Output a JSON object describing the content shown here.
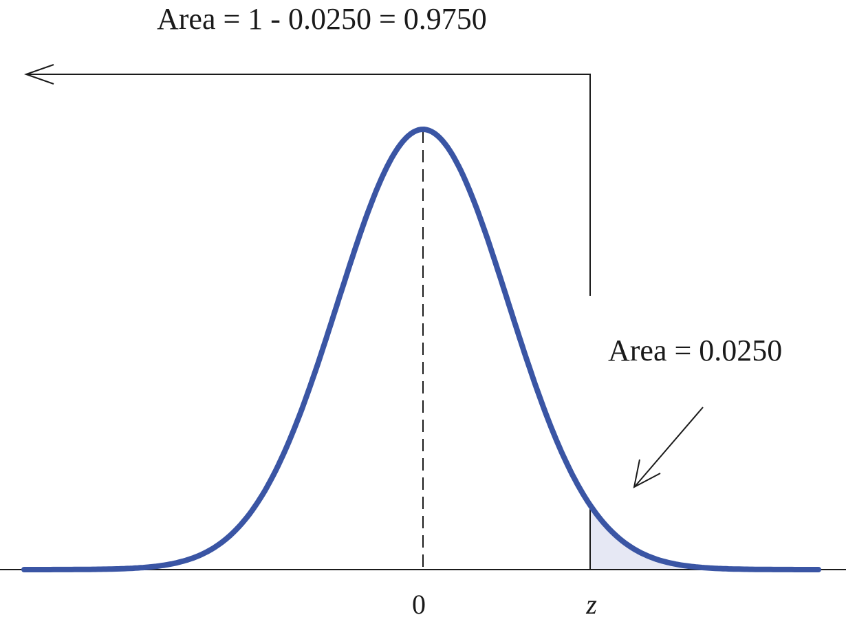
{
  "figure": {
    "left_area_label": "Area = 1 - 0.0250 = 0.9750",
    "right_area_label": "Area = 0.0250",
    "mean_label": "0",
    "z_label": "z"
  },
  "colors": {
    "curve": "#3a55a4",
    "shade": "#e6e8f4",
    "ink": "#1a1a1a"
  },
  "chart_data": {
    "type": "area",
    "distribution": "standard normal",
    "mean": 0,
    "critical_value_name": "z",
    "lower_area": 0.975,
    "upper_tail_area": 0.025
  }
}
